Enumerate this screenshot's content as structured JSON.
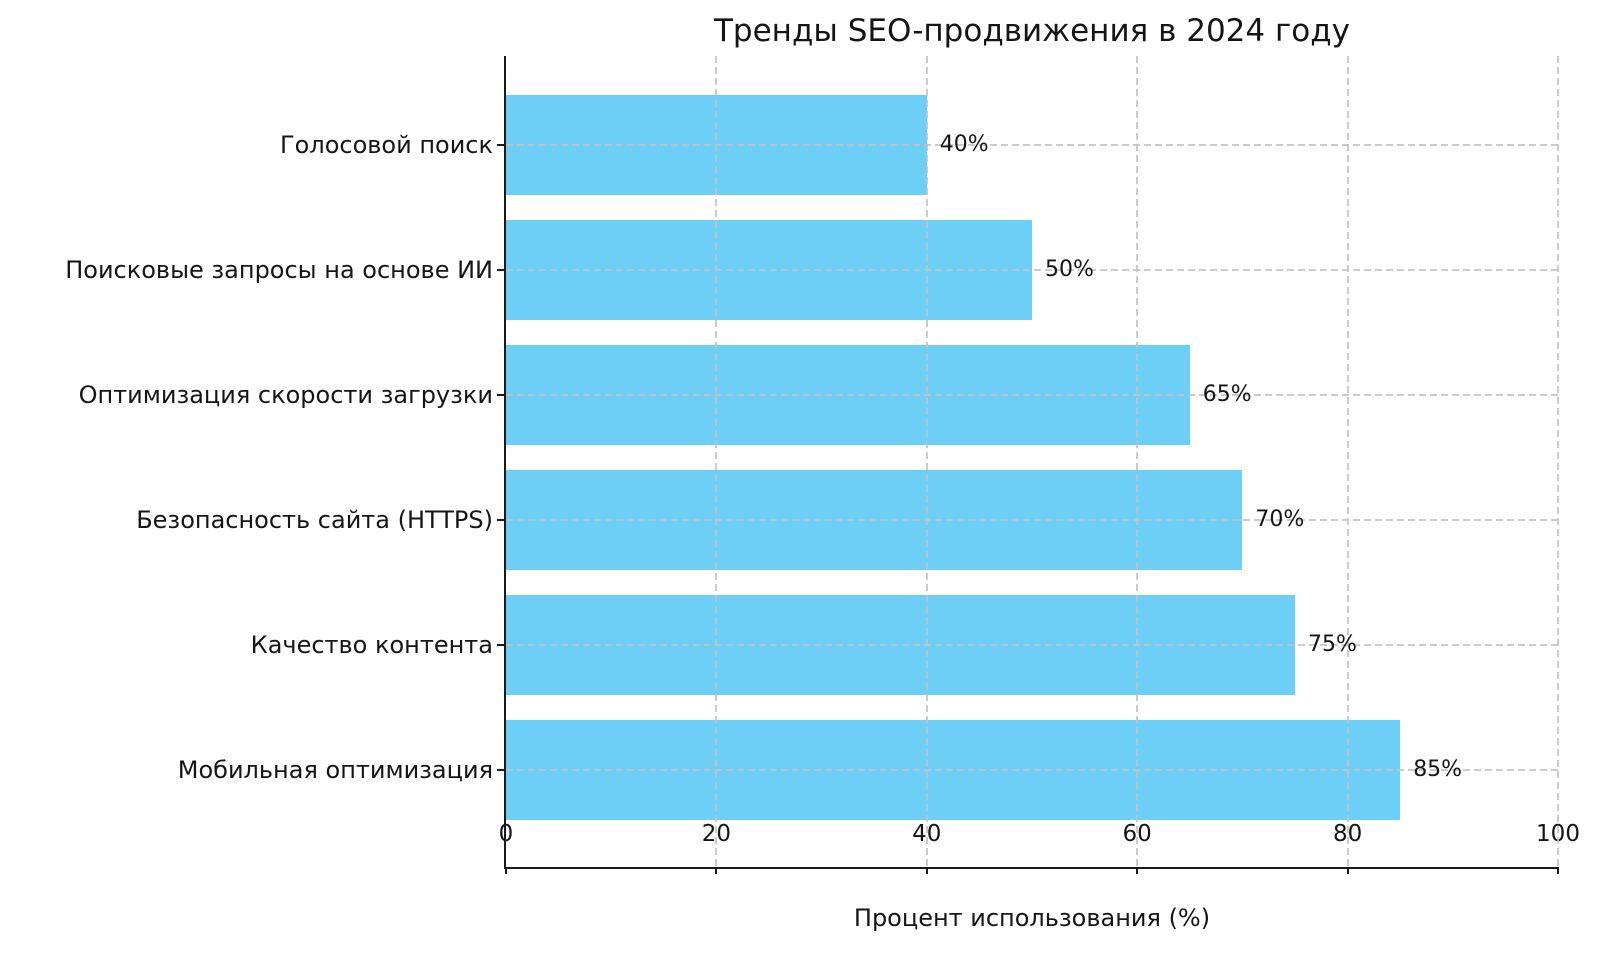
{
  "chart_data": {
    "type": "bar",
    "orientation": "horizontal",
    "title": "Тренды SEO-продвижения в 2024 году",
    "xlabel": "Процент использования (%)",
    "ylabel": "",
    "categories": [
      "Голосовой поиск",
      "Поисковые запросы на основе ИИ",
      "Оптимизация скорости загрузки",
      "Безопасность сайта (HTTPS)",
      "Качество контента",
      "Мобильная оптимизация"
    ],
    "values": [
      40,
      50,
      65,
      70,
      75,
      85
    ],
    "value_labels": [
      "40%",
      "50%",
      "65%",
      "70%",
      "75%",
      "85%"
    ],
    "xlim": [
      0,
      100
    ],
    "x_ticks": [
      0,
      20,
      40,
      60,
      80,
      100
    ],
    "x_tick_labels": [
      "0",
      "20",
      "40",
      "60",
      "80",
      "100"
    ],
    "grid": true,
    "grid_style": "dashed",
    "legend": "none",
    "bar_color": "#6DCFF6",
    "text_color": "#151515",
    "grid_color": "#c2c2c2",
    "spine_color": "#1a1a1a"
  }
}
